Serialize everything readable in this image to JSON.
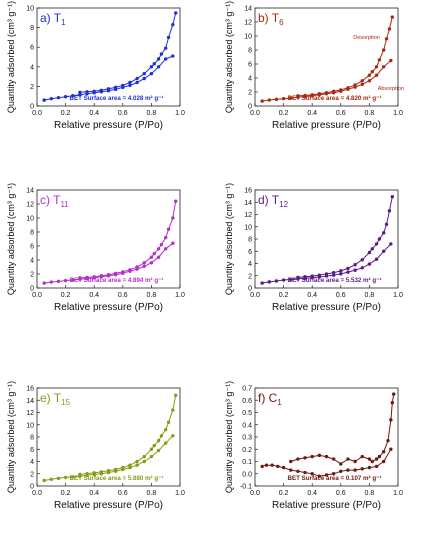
{
  "chart_data": [
    {
      "type": "line",
      "panel": "a",
      "sample": {
        "base": "T",
        "sub": "1"
      },
      "color": "#1f2fd6",
      "xlabel": "Relative pressure (P/Po)",
      "ylabel": "Quantity adsorbed (cm³ g⁻¹)",
      "xlim": [
        0.0,
        1.0
      ],
      "ylim": [
        0,
        10
      ],
      "xticks": [
        "0.0",
        "0.2",
        "0.4",
        "0.6",
        "0.8",
        "1.0"
      ],
      "yticks": [
        "0",
        "2",
        "4",
        "6",
        "8",
        "10"
      ],
      "bet_text": "BET Surface area = 4.028 m² g⁻¹",
      "series": [
        {
          "x": [
            0.05,
            0.1,
            0.15,
            0.2,
            0.25,
            0.3,
            0.35,
            0.4,
            0.45,
            0.5,
            0.55,
            0.6,
            0.65,
            0.7,
            0.75,
            0.8,
            0.85,
            0.9,
            0.95
          ],
          "y": [
            0.6,
            0.75,
            0.85,
            0.95,
            1.05,
            1.15,
            1.25,
            1.35,
            1.45,
            1.55,
            1.7,
            1.9,
            2.1,
            2.4,
            2.8,
            3.3,
            4.0,
            4.8,
            5.1
          ]
        },
        {
          "x": [
            0.97,
            0.95,
            0.92,
            0.9,
            0.87,
            0.85,
            0.82,
            0.8,
            0.75,
            0.7,
            0.65,
            0.6,
            0.55,
            0.5,
            0.45,
            0.4,
            0.35,
            0.3
          ],
          "y": [
            9.5,
            8.3,
            7.0,
            5.9,
            5.3,
            4.8,
            4.3,
            4.0,
            3.3,
            2.8,
            2.4,
            2.1,
            1.9,
            1.75,
            1.6,
            1.5,
            1.45,
            1.4
          ]
        }
      ]
    },
    {
      "type": "line",
      "panel": "b",
      "sample": {
        "base": "T",
        "sub": "6"
      },
      "color": "#a82a12",
      "xlabel": "Relative pressure (P/Po)",
      "ylabel": "Quantity adsorbed (cm³ g⁻¹)",
      "xlim": [
        0.0,
        1.0
      ],
      "ylim": [
        0,
        14
      ],
      "xticks": [
        "0.0",
        "0.2",
        "0.4",
        "0.6",
        "0.8",
        "1.0"
      ],
      "yticks": [
        "0",
        "2",
        "4",
        "6",
        "8",
        "10",
        "12",
        "14"
      ],
      "bet_text": "BET Surface area = 4.820 m² g⁻¹",
      "annotations": [
        "Desorption",
        "Absorption"
      ],
      "series": [
        {
          "x": [
            0.05,
            0.1,
            0.15,
            0.2,
            0.25,
            0.3,
            0.35,
            0.4,
            0.45,
            0.5,
            0.55,
            0.6,
            0.65,
            0.7,
            0.75,
            0.8,
            0.85,
            0.9,
            0.95
          ],
          "y": [
            0.7,
            0.85,
            0.95,
            1.05,
            1.15,
            1.25,
            1.35,
            1.45,
            1.6,
            1.75,
            1.9,
            2.1,
            2.4,
            2.7,
            3.1,
            3.6,
            4.4,
            5.6,
            6.5
          ]
        },
        {
          "x": [
            0.96,
            0.94,
            0.92,
            0.9,
            0.87,
            0.85,
            0.82,
            0.8,
            0.75,
            0.7,
            0.65,
            0.6,
            0.55,
            0.5,
            0.45,
            0.4,
            0.35,
            0.3
          ],
          "y": [
            12.7,
            11.0,
            9.6,
            8.0,
            6.6,
            5.6,
            4.9,
            4.4,
            3.6,
            3.0,
            2.6,
            2.3,
            2.1,
            1.9,
            1.75,
            1.6,
            1.5,
            1.45
          ]
        }
      ]
    },
    {
      "type": "line",
      "panel": "c",
      "sample": {
        "base": "T",
        "sub": "11"
      },
      "color": "#b430c8",
      "xlabel": "Relative pressure (P/Po)",
      "ylabel": "Quantity adsorbed (cm³ g⁻¹)",
      "xlim": [
        0.0,
        1.0
      ],
      "ylim": [
        0,
        14
      ],
      "xticks": [
        "0.0",
        "0.2",
        "0.4",
        "0.6",
        "0.8",
        "1.0"
      ],
      "yticks": [
        "0",
        "2",
        "4",
        "6",
        "8",
        "10",
        "12",
        "14"
      ],
      "bet_text": "BET Surface area = 4.894 m² g⁻¹",
      "series": [
        {
          "x": [
            0.05,
            0.1,
            0.15,
            0.2,
            0.25,
            0.3,
            0.35,
            0.4,
            0.45,
            0.5,
            0.55,
            0.6,
            0.65,
            0.7,
            0.75,
            0.8,
            0.85,
            0.9,
            0.95
          ],
          "y": [
            0.7,
            0.85,
            0.95,
            1.05,
            1.15,
            1.25,
            1.35,
            1.45,
            1.6,
            1.75,
            1.9,
            2.1,
            2.4,
            2.7,
            3.1,
            3.6,
            4.4,
            5.6,
            6.4
          ]
        },
        {
          "x": [
            0.97,
            0.95,
            0.92,
            0.9,
            0.87,
            0.85,
            0.82,
            0.8,
            0.75,
            0.7,
            0.65,
            0.6,
            0.55,
            0.5,
            0.45,
            0.4,
            0.35,
            0.3
          ],
          "y": [
            12.4,
            10.0,
            8.4,
            7.2,
            6.2,
            5.6,
            4.9,
            4.4,
            3.6,
            3.0,
            2.6,
            2.3,
            2.1,
            1.9,
            1.75,
            1.6,
            1.5,
            1.45
          ]
        }
      ]
    },
    {
      "type": "line",
      "panel": "d",
      "sample": {
        "base": "T",
        "sub": "12"
      },
      "color": "#5a1a8c",
      "xlabel": "Relative pressure (P/Po)",
      "ylabel": "Quantity adsorbed (cm³ g⁻¹)",
      "xlim": [
        0.0,
        1.0
      ],
      "ylim": [
        0,
        16
      ],
      "xticks": [
        "0.0",
        "0.2",
        "0.4",
        "0.6",
        "0.8",
        "1.0"
      ],
      "yticks": [
        "0",
        "2",
        "4",
        "6",
        "8",
        "10",
        "12",
        "14",
        "16"
      ],
      "bet_text": "BET Surface area = 5.532 m² g⁻¹",
      "series": [
        {
          "x": [
            0.05,
            0.1,
            0.15,
            0.2,
            0.25,
            0.3,
            0.35,
            0.4,
            0.45,
            0.5,
            0.55,
            0.6,
            0.65,
            0.7,
            0.75,
            0.8,
            0.85,
            0.9,
            0.95
          ],
          "y": [
            0.8,
            1.0,
            1.15,
            1.3,
            1.4,
            1.5,
            1.6,
            1.7,
            1.8,
            1.95,
            2.1,
            2.3,
            2.6,
            2.9,
            3.3,
            3.9,
            4.7,
            6.0,
            7.2
          ]
        },
        {
          "x": [
            0.96,
            0.94,
            0.92,
            0.9,
            0.87,
            0.85,
            0.82,
            0.8,
            0.75,
            0.7,
            0.65,
            0.6,
            0.55,
            0.5,
            0.45,
            0.4,
            0.35,
            0.3
          ],
          "y": [
            14.9,
            12.6,
            10.4,
            9.0,
            8.0,
            7.2,
            6.4,
            5.8,
            4.6,
            3.8,
            3.2,
            2.8,
            2.5,
            2.3,
            2.1,
            1.95,
            1.85,
            1.75
          ]
        }
      ]
    },
    {
      "type": "line",
      "panel": "e",
      "sample": {
        "base": "T",
        "sub": "15"
      },
      "color": "#8a9a14",
      "xlabel": "Relative pressure (P/Po)",
      "ylabel": "Quantity adsorbed (cm³ g⁻¹)",
      "xlim": [
        0.0,
        1.0
      ],
      "ylim": [
        0,
        16
      ],
      "xticks": [
        "0.0",
        "0.2",
        "0.4",
        "0.6",
        "0.8",
        "1.0"
      ],
      "yticks": [
        "0",
        "2",
        "4",
        "6",
        "8",
        "10",
        "12",
        "14",
        "16"
      ],
      "bet_text": "BET Surface area = 5.880 m² g⁻¹",
      "series": [
        {
          "x": [
            0.05,
            0.1,
            0.15,
            0.2,
            0.25,
            0.3,
            0.35,
            0.4,
            0.45,
            0.5,
            0.55,
            0.6,
            0.65,
            0.7,
            0.75,
            0.8,
            0.85,
            0.9,
            0.95
          ],
          "y": [
            0.9,
            1.1,
            1.25,
            1.4,
            1.5,
            1.6,
            1.75,
            1.9,
            2.0,
            2.2,
            2.4,
            2.7,
            3.0,
            3.4,
            4.0,
            4.8,
            5.8,
            7.0,
            8.2
          ]
        },
        {
          "x": [
            0.97,
            0.95,
            0.92,
            0.9,
            0.87,
            0.85,
            0.82,
            0.8,
            0.75,
            0.7,
            0.65,
            0.6,
            0.55,
            0.5,
            0.45,
            0.4,
            0.35,
            0.3
          ],
          "y": [
            14.8,
            12.4,
            10.4,
            9.2,
            8.2,
            7.4,
            6.6,
            6.0,
            4.8,
            4.0,
            3.4,
            3.0,
            2.7,
            2.5,
            2.3,
            2.15,
            2.0,
            1.9
          ]
        }
      ]
    },
    {
      "type": "line",
      "panel": "f",
      "sample": {
        "base": "C",
        "sub": "1"
      },
      "color": "#6e1a10",
      "xlabel": "Relative pressure (P/Po)",
      "ylabel": "Quantity adsorbed (cm³ g⁻¹)",
      "xlim": [
        0.0,
        1.0
      ],
      "ylim": [
        -0.1,
        0.7
      ],
      "xticks": [
        "0.0",
        "0.2",
        "0.4",
        "0.6",
        "0.8",
        "1.0"
      ],
      "yticks": [
        "-0.1",
        "0.0",
        "0.1",
        "0.2",
        "0.3",
        "0.4",
        "0.5",
        "0.6",
        "0.7"
      ],
      "bet_text": "BET Surface area = 0.107 m² g⁻¹",
      "series": [
        {
          "x": [
            0.05,
            0.08,
            0.12,
            0.16,
            0.2,
            0.25,
            0.3,
            0.35,
            0.4,
            0.45,
            0.5,
            0.55,
            0.6,
            0.65,
            0.7,
            0.75,
            0.8,
            0.85,
            0.9,
            0.95
          ],
          "y": [
            0.06,
            0.07,
            0.07,
            0.06,
            0.05,
            0.03,
            0.02,
            0.01,
            0.0,
            -0.02,
            -0.01,
            0.0,
            0.02,
            0.03,
            0.03,
            0.04,
            0.05,
            0.06,
            0.1,
            0.2
          ]
        },
        {
          "x": [
            0.97,
            0.96,
            0.95,
            0.93,
            0.9,
            0.87,
            0.85,
            0.82,
            0.8,
            0.75,
            0.7,
            0.65,
            0.6,
            0.55,
            0.5,
            0.45,
            0.4,
            0.35,
            0.3,
            0.25
          ],
          "y": [
            0.65,
            0.58,
            0.44,
            0.27,
            0.18,
            0.14,
            0.12,
            0.1,
            0.12,
            0.14,
            0.1,
            0.12,
            0.08,
            0.12,
            0.14,
            0.15,
            0.14,
            0.13,
            0.12,
            0.1
          ]
        }
      ]
    }
  ]
}
